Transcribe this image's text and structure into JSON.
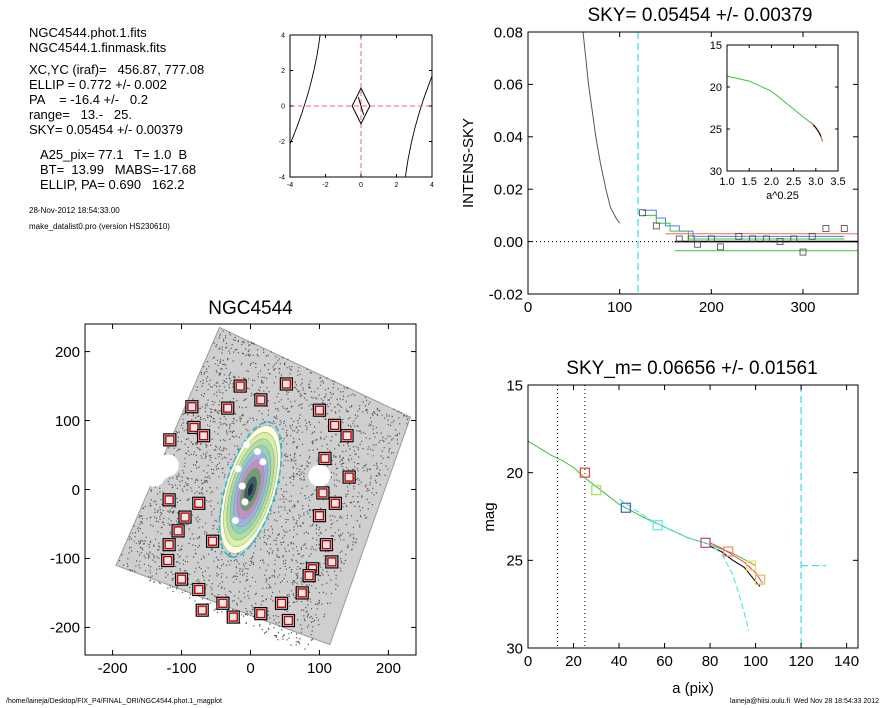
{
  "info": {
    "lines": [
      "NGC4544.phot.1.fits",
      "NGC4544.1.finmask.fits",
      "XC,YC (iraf)=   456.87, 777.08",
      "ELLIP = 0.772 +/- 0.002",
      "PA    = -16.4 +/-   0.2",
      "range=   13.-   25.",
      "SKY= 0.05454 +/- 0.00379",
      "A25_pix= 77.1   T= 1.0  B",
      "BT=  13.99   MABS=-17.68",
      "ELLIP, PA= 0.690   162.2"
    ],
    "date": "28-Nov-2012 18:54:33.00",
    "program": "make_datalist0.pro (version HS230610)"
  },
  "footer": {
    "left": "/home/laineja/Desktop/FIX_P4/FINAL_ORI/NGC4544.phot.1_magplot",
    "right": "laineja@hiisi.oulu.fi  Wed Nov 28 18:54:33 2012"
  },
  "chart_data": [
    {
      "id": "contour",
      "type": "scatter",
      "title": "",
      "xlim": [
        -4,
        4
      ],
      "ylim": [
        -4,
        4
      ],
      "xticks": [
        "-4",
        "-2",
        "0",
        "2",
        "4"
      ],
      "yticks": [
        "4",
        "2",
        "0",
        "-2",
        "-4"
      ],
      "center": [
        0,
        0
      ],
      "colors": {
        "lines": "#000000",
        "crosshair": "#ff6060"
      }
    },
    {
      "id": "sky",
      "type": "line",
      "title": "SKY= 0.05454 +/- 0.00379",
      "xlabel": "",
      "ylabel": "INTENS-SKY",
      "xlim": [
        0,
        360
      ],
      "ylim": [
        -0.02,
        0.08
      ],
      "xticks": [
        "0",
        "100",
        "200",
        "300"
      ],
      "yticks": [
        "0.08",
        "0.06",
        "0.04",
        "0.02",
        "0.00",
        "-0.02"
      ],
      "sky_radius": 120,
      "profile": [
        [
          60,
          0.08
        ],
        [
          63,
          0.07
        ],
        [
          66,
          0.06
        ],
        [
          70,
          0.05
        ],
        [
          74,
          0.04
        ],
        [
          79,
          0.03
        ],
        [
          85,
          0.02
        ],
        [
          90,
          0.013
        ],
        [
          96,
          0.009
        ],
        [
          100,
          0.007
        ]
      ],
      "squares": [
        [
          125,
          0.011
        ],
        [
          140,
          0.006
        ],
        [
          165,
          0.001
        ],
        [
          178,
          0.001
        ],
        [
          185,
          -0.001
        ],
        [
          200,
          0.001
        ],
        [
          210,
          -0.002
        ],
        [
          230,
          0.002
        ],
        [
          245,
          0.001
        ],
        [
          260,
          0.001
        ],
        [
          275,
          0.0
        ],
        [
          290,
          0.001
        ],
        [
          300,
          -0.004
        ],
        [
          310,
          0.002
        ],
        [
          325,
          0.005
        ],
        [
          345,
          0.005
        ]
      ],
      "horizontal_levels": {
        "red": 0.003,
        "green": -0.0035
      },
      "colors": {
        "profile": "#555555",
        "cyan": "#40e0f0",
        "red": "#ff6060",
        "green": "#40c040",
        "blue": "#4080ff"
      },
      "inset": {
        "xlabel": "a^0.25",
        "xlim": [
          1.0,
          3.5
        ],
        "ylim": [
          15,
          30
        ],
        "xticks": [
          "1.0",
          "1.5",
          "2.0",
          "2.5",
          "3.0",
          "3.5"
        ],
        "yticks": [
          "15",
          "20",
          "25",
          "30"
        ],
        "series": [
          [
            1.0,
            18.7
          ],
          [
            1.5,
            19.3
          ],
          [
            2.0,
            20.5
          ],
          [
            2.4,
            22.2
          ],
          [
            2.7,
            23.5
          ],
          [
            2.9,
            24.3
          ],
          [
            3.0,
            24.9
          ],
          [
            3.1,
            25.6
          ],
          [
            3.15,
            26.4
          ]
        ]
      }
    },
    {
      "id": "galaxy",
      "type": "scatter",
      "title": "NGC4544",
      "xlim": [
        -240,
        240
      ],
      "ylim": [
        -240,
        240
      ],
      "xticks": [
        "-200",
        "-100",
        "0",
        "100",
        "200"
      ],
      "yticks": [
        "200",
        "100",
        "0",
        "-100",
        "-200"
      ],
      "center": [
        0,
        0
      ],
      "ellip": 0.772,
      "pa": -16.4,
      "boxes": [
        [
          -15,
          150
        ],
        [
          15,
          130
        ],
        [
          52,
          153
        ],
        [
          -85,
          120
        ],
        [
          -33,
          118
        ],
        [
          -117,
          72
        ],
        [
          -82,
          90
        ],
        [
          -68,
          78
        ],
        [
          100,
          115
        ],
        [
          122,
          93
        ],
        [
          140,
          78
        ],
        [
          108,
          45
        ],
        [
          143,
          18
        ],
        [
          -118,
          -15
        ],
        [
          -95,
          -40
        ],
        [
          -75,
          -20
        ],
        [
          105,
          -5
        ],
        [
          123,
          -20
        ],
        [
          100,
          -38
        ],
        [
          -118,
          -80
        ],
        [
          -120,
          -103
        ],
        [
          -100,
          -130
        ],
        [
          -75,
          -145
        ],
        [
          110,
          -80
        ],
        [
          90,
          -115
        ],
        [
          118,
          -105
        ],
        [
          75,
          -150
        ],
        [
          45,
          -165
        ],
        [
          15,
          -180
        ],
        [
          -40,
          -165
        ],
        [
          -70,
          -175
        ],
        [
          -25,
          -185
        ],
        [
          55,
          -190
        ],
        [
          85,
          -125
        ],
        [
          -55,
          -75
        ],
        [
          -105,
          -60
        ]
      ],
      "colors": {
        "box_outer": "#000000",
        "box_inner": "#c00000",
        "field": "#777777",
        "dashed": "#20c0d0"
      }
    },
    {
      "id": "mag",
      "type": "line",
      "title": "SKY_m=  0.06656 +/- 0.01561",
      "xlabel": "a (pix)",
      "ylabel": "mag",
      "xlim": [
        0,
        145
      ],
      "ylim": [
        15,
        30
      ],
      "xticks": [
        "0",
        "20",
        "40",
        "60",
        "80",
        "100",
        "120",
        "140"
      ],
      "yticks": [
        "15",
        "20",
        "25",
        "30"
      ],
      "vlines_dotted": [
        13,
        25
      ],
      "vline_dashed": 120,
      "sky_limit_mag": 25.3,
      "series": [
        {
          "color": "#40c040",
          "values": [
            [
              0,
              18.2
            ],
            [
              5,
              18.6
            ],
            [
              10,
              19.0
            ],
            [
              15,
              19.3
            ],
            [
              20,
              19.7
            ],
            [
              25,
              20.3
            ],
            [
              30,
              20.8
            ],
            [
              40,
              21.8
            ],
            [
              50,
              22.5
            ],
            [
              60,
              23.1
            ],
            [
              70,
              23.7
            ],
            [
              80,
              24.1
            ],
            [
              90,
              24.6
            ],
            [
              100,
              25.3
            ]
          ]
        },
        {
          "color": "#000000",
          "values": [
            [
              80,
              24.2
            ],
            [
              85,
              24.5
            ],
            [
              90,
              25.0
            ],
            [
              95,
              25.4
            ],
            [
              100,
              26.2
            ],
            [
              102,
              26.5
            ]
          ]
        },
        {
          "color": "#ff4040",
          "values": [
            [
              80,
              24.0
            ],
            [
              85,
              24.3
            ],
            [
              90,
              24.7
            ],
            [
              95,
              25.1
            ],
            [
              100,
              25.7
            ],
            [
              103,
              26.3
            ]
          ]
        },
        {
          "color": "#40e0f0",
          "values": [
            [
              40,
              21.5
            ],
            [
              55,
              22.8
            ],
            [
              70,
              23.7
            ],
            [
              80,
              24.1
            ],
            [
              85,
              24.6
            ],
            [
              90,
              25.8
            ],
            [
              94,
              27.5
            ],
            [
              97,
              29.0
            ]
          ]
        }
      ],
      "markers": [
        {
          "x": 25,
          "y": 20.0,
          "color": "#e04040"
        },
        {
          "x": 30,
          "y": 21.0,
          "color": "#a0e060"
        },
        {
          "x": 43,
          "y": 22.0,
          "color": "#4060c0"
        },
        {
          "x": 57,
          "y": 23.0,
          "color": "#60e0f0"
        },
        {
          "x": 78,
          "y": 24.0,
          "color": "#c04080"
        },
        {
          "x": 88,
          "y": 24.5,
          "color": "#ff8060"
        },
        {
          "x": 98,
          "y": 25.3,
          "color": "#ffd060"
        },
        {
          "x": 102,
          "y": 26.1,
          "color": "#e0c040"
        }
      ]
    }
  ]
}
